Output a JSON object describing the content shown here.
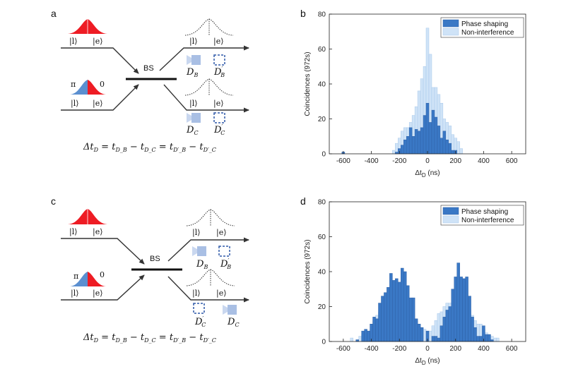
{
  "panels": {
    "a": {
      "label": "a",
      "inputs_top": {
        "ket_l": "|l⟩",
        "ket_e": "|e⟩"
      },
      "inputs_bottom": {
        "phase_left": "π",
        "phase_right": "0",
        "ket_l": "|l⟩",
        "ket_e": "|e⟩"
      },
      "beamsplitter": "BS",
      "outputs_top": {
        "ket_l": "|l⟩",
        "ket_e": "|e⟩",
        "det1": "D_B",
        "det2": "D'_B"
      },
      "outputs_bottom": {
        "ket_l": "|l⟩",
        "ket_e": "|e⟩",
        "det1": "D_C",
        "det2": "D'_C"
      },
      "equation": "Δt_D = t_{D_B} − t_{D_C} = t_{D'_B} − t_{D'_C}"
    },
    "c": {
      "label": "c",
      "inputs_top": {
        "ket_l": "|l⟩",
        "ket_e": "|e⟩"
      },
      "inputs_bottom": {
        "phase_left": "π",
        "phase_right": "0",
        "ket_l": "|l⟩",
        "ket_e": "|e⟩"
      },
      "beamsplitter": "BS",
      "outputs_top": {
        "ket_l": "|l⟩",
        "ket_e": "|e⟩",
        "det1": "D_B",
        "det2": "D'_B"
      },
      "outputs_bottom": {
        "ket_l": "|l⟩",
        "ket_e": "|e⟩",
        "det1": "D'_C",
        "det2": "D_C"
      },
      "equation": "Δt_D = t_{D_B} − t_{D_C} = t_{D'_B} − t_{D'_C}"
    },
    "b": {
      "label": "b"
    },
    "d": {
      "label": "d"
    }
  },
  "colors": {
    "phase_shaping": "#3a78c5",
    "non_interference": "#cfe3f7",
    "pulse_red": "#ee1c24",
    "pulse_blue": "#5b8fd0",
    "detector": "#a9bfe4",
    "detector_dashed": "#2f59a8"
  },
  "chart_data": [
    {
      "type": "bar",
      "panel": "b",
      "ylabel": "Coincidences (972s)",
      "xlabel_main": "Δt",
      "xlabel_sub": "D",
      "xlabel_unit": " (ns)",
      "xlim": [
        -700,
        700
      ],
      "ylim": [
        0,
        80
      ],
      "xticks": [
        -600,
        -400,
        -200,
        0,
        200,
        400,
        600
      ],
      "yticks": [
        0,
        20,
        40,
        60,
        80
      ],
      "bin_width": 20,
      "legend": [
        "Phase shaping",
        "Non-interference"
      ],
      "legend_position": "top-right",
      "series": [
        {
          "name": "Non-interference",
          "bin_starts": [
            -610,
            -250,
            -230,
            -210,
            -190,
            -170,
            -150,
            -130,
            -110,
            -90,
            -70,
            -50,
            -30,
            -10,
            10,
            30,
            50,
            70,
            90,
            110,
            130,
            150,
            170,
            190,
            210,
            230
          ],
          "values": [
            1,
            2,
            6,
            9,
            13,
            15,
            15,
            18,
            22,
            27,
            36,
            43,
            50,
            72,
            57,
            38,
            38,
            34,
            29,
            20,
            18,
            16,
            11,
            9,
            7,
            3
          ]
        },
        {
          "name": "Phase shaping",
          "bin_starts": [
            -610,
            -250,
            -230,
            -210,
            -190,
            -170,
            -150,
            -130,
            -110,
            -90,
            -70,
            -50,
            -30,
            -10,
            10,
            30,
            50,
            70,
            90,
            110,
            130,
            150,
            170,
            190,
            210,
            230
          ],
          "values": [
            1,
            0,
            1,
            3,
            5,
            8,
            10,
            15,
            10,
            14,
            13,
            15,
            22,
            29,
            18,
            25,
            21,
            16,
            9,
            13,
            8,
            6,
            2,
            2,
            0,
            0
          ]
        }
      ]
    },
    {
      "type": "bar",
      "panel": "d",
      "ylabel": "Coincidences (972s)",
      "xlabel_main": "Δt",
      "xlabel_sub": "D",
      "xlabel_unit": " (ns)",
      "xlim": [
        -700,
        700
      ],
      "ylim": [
        0,
        80
      ],
      "xticks": [
        -600,
        -400,
        -200,
        0,
        200,
        400,
        600
      ],
      "yticks": [
        0,
        20,
        40,
        60,
        80
      ],
      "bin_width": 20,
      "legend": [
        "Phase shaping",
        "Non-interference"
      ],
      "legend_position": "top-right",
      "series": [
        {
          "name": "Non-interference",
          "bin_starts": [
            -590,
            -550,
            -510,
            -490,
            -470,
            -450,
            -430,
            -410,
            -390,
            -370,
            -350,
            -330,
            -310,
            -290,
            -270,
            -250,
            -230,
            -210,
            -190,
            -170,
            -150,
            -130,
            -110,
            -90,
            -70,
            -50,
            -30,
            -10,
            10,
            30,
            50,
            70,
            90,
            110,
            130,
            150,
            170,
            190,
            210,
            230,
            250,
            270,
            290,
            310,
            330,
            350,
            370,
            390,
            410,
            430,
            450,
            470,
            490
          ],
          "values": [
            0,
            2,
            1,
            3,
            4,
            5,
            6,
            7,
            12,
            15,
            17,
            20,
            22,
            28,
            26,
            24,
            20,
            19,
            19,
            18,
            16,
            14,
            13,
            12,
            10,
            8,
            7,
            4,
            6,
            9,
            12,
            16,
            17,
            20,
            22,
            22,
            22,
            24,
            22,
            22,
            22,
            22,
            18,
            15,
            12,
            10,
            10,
            7,
            5,
            4,
            3,
            2,
            2
          ]
        },
        {
          "name": "Phase shaping",
          "bin_starts": [
            -590,
            -550,
            -510,
            -490,
            -470,
            -450,
            -430,
            -410,
            -390,
            -370,
            -350,
            -330,
            -310,
            -290,
            -270,
            -250,
            -230,
            -210,
            -190,
            -170,
            -150,
            -130,
            -110,
            -90,
            -70,
            -50,
            -30,
            -10,
            10,
            30,
            50,
            70,
            90,
            110,
            130,
            150,
            170,
            190,
            210,
            230,
            250,
            270,
            290,
            310,
            330,
            350,
            370,
            390,
            410,
            430,
            450,
            470,
            490
          ],
          "values": [
            0,
            0,
            1,
            0,
            6,
            7,
            6,
            10,
            14,
            13,
            22,
            26,
            28,
            31,
            39,
            35,
            36,
            34,
            42,
            40,
            32,
            25,
            25,
            13,
            10,
            8,
            0,
            6,
            0,
            3,
            3,
            2,
            9,
            14,
            18,
            20,
            30,
            37,
            45,
            37,
            36,
            37,
            26,
            14,
            8,
            3,
            3,
            9,
            4,
            4,
            1,
            0,
            0
          ]
        }
      ]
    }
  ]
}
